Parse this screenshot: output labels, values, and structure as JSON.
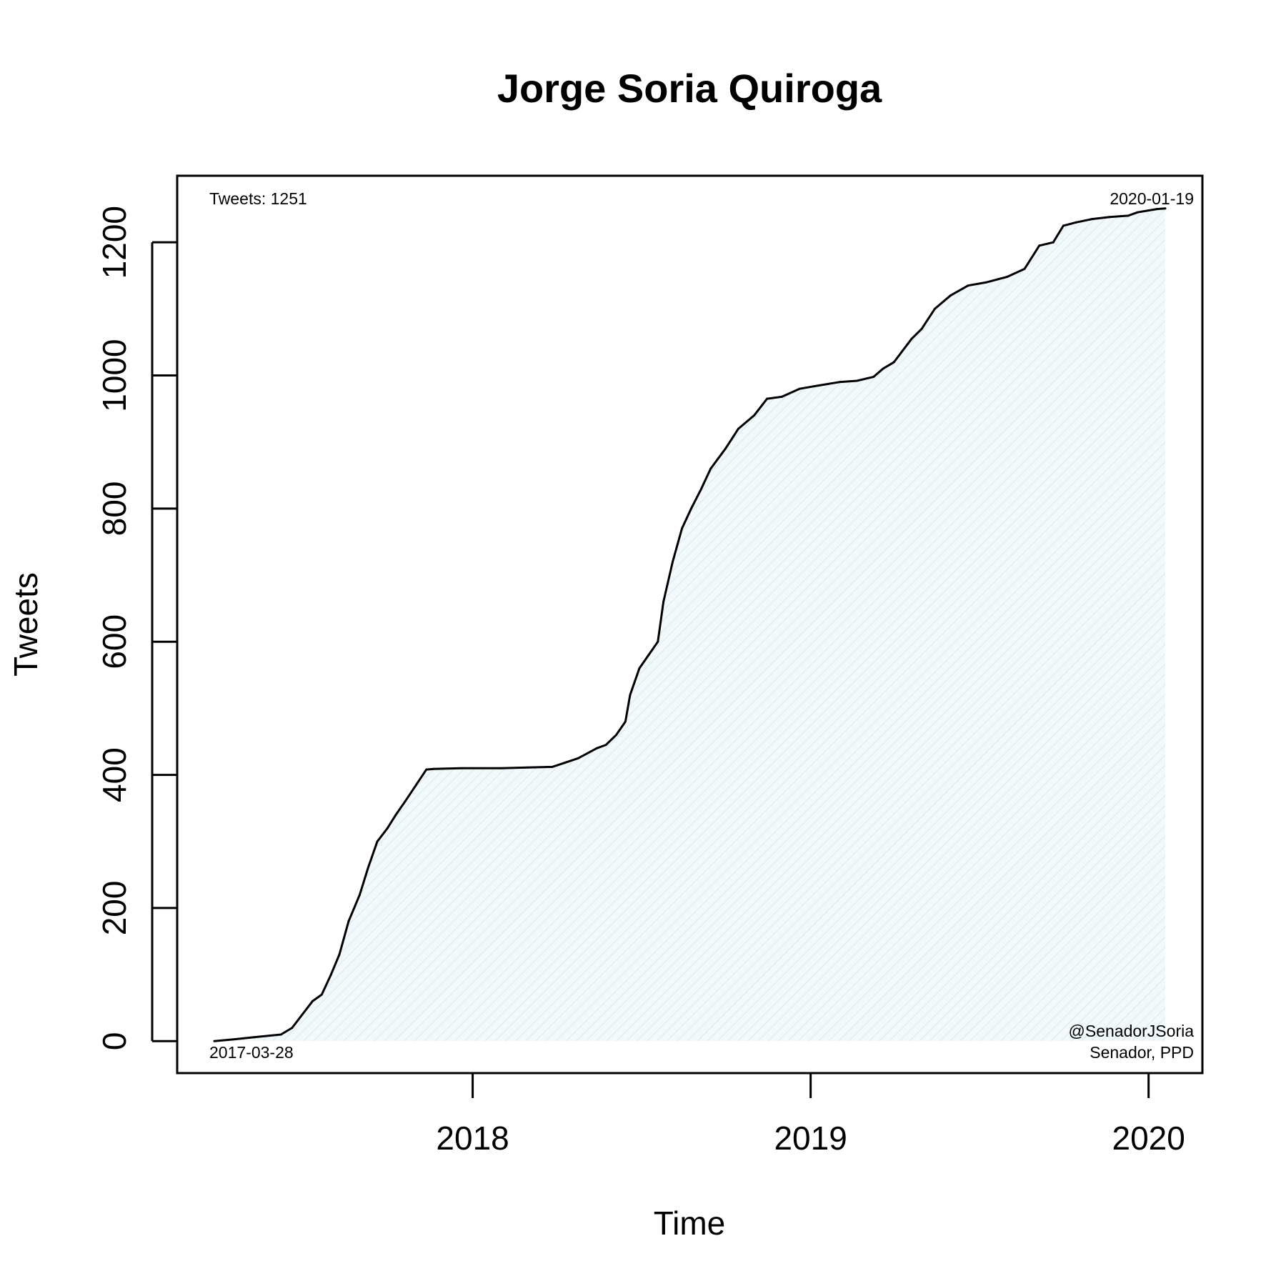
{
  "chart_data": {
    "type": "area",
    "title": "Jorge Soria Quiroga",
    "xlabel": "Time",
    "ylabel": "Tweets",
    "x_ticks": [
      "2018",
      "2019",
      "2020"
    ],
    "y_ticks": [
      0,
      200,
      400,
      600,
      800,
      1000,
      1200
    ],
    "xlim": [
      "2017-03-28",
      "2020-01-19"
    ],
    "ylim": [
      -48,
      1300
    ],
    "grid": false,
    "fill_color": "#e9f3f6",
    "line_color": "#000000",
    "annotations": {
      "top_left": "Tweets: 1251",
      "top_right": "2020-01-19",
      "bottom_left": "2017-03-28",
      "bottom_right_line1": "@SenadorJSoria",
      "bottom_right_line2": "Senador, PPD"
    },
    "series": [
      {
        "x": [
          "2017-03-28",
          "2017-04-20",
          "2017-05-10",
          "2017-06-08",
          "2017-06-20",
          "2017-07-01",
          "2017-07-12",
          "2017-07-22",
          "2017-08-01",
          "2017-08-10",
          "2017-08-20",
          "2017-09-01",
          "2017-09-10",
          "2017-09-20",
          "2017-10-01",
          "2017-10-10",
          "2017-10-20",
          "2017-11-01",
          "2017-11-12",
          "2017-11-20",
          "2017-12-20",
          "2018-02-01",
          "2018-03-01",
          "2018-03-28",
          "2018-04-10",
          "2018-04-25",
          "2018-05-15",
          "2018-05-25",
          "2018-06-05",
          "2018-06-15",
          "2018-06-20",
          "2018-06-30",
          "2018-07-10",
          "2018-07-20",
          "2018-07-26",
          "2018-08-05",
          "2018-08-15",
          "2018-08-25",
          "2018-09-05",
          "2018-09-15",
          "2018-10-01",
          "2018-10-15",
          "2018-11-01",
          "2018-11-15",
          "2018-12-01",
          "2018-12-20",
          "2019-01-10",
          "2019-02-01",
          "2019-02-20",
          "2019-03-10",
          "2019-03-20",
          "2019-04-01",
          "2019-04-20",
          "2019-05-01",
          "2019-05-15",
          "2019-06-01",
          "2019-06-20",
          "2019-07-10",
          "2019-08-01",
          "2019-08-20",
          "2019-09-05",
          "2019-09-20",
          "2019-10-01",
          "2019-10-15",
          "2019-11-01",
          "2019-11-20",
          "2019-12-10",
          "2019-12-20",
          "2020-01-10",
          "2020-01-19"
        ],
        "values": [
          0,
          3,
          6,
          10,
          20,
          40,
          60,
          70,
          100,
          130,
          180,
          220,
          260,
          300,
          320,
          340,
          360,
          385,
          408,
          409,
          410,
          410,
          411,
          412,
          418,
          425,
          440,
          445,
          460,
          480,
          520,
          560,
          580,
          600,
          660,
          720,
          770,
          800,
          830,
          860,
          890,
          920,
          940,
          965,
          968,
          980,
          985,
          990,
          992,
          998,
          1010,
          1020,
          1055,
          1070,
          1100,
          1120,
          1135,
          1140,
          1148,
          1160,
          1195,
          1200,
          1225,
          1230,
          1235,
          1238,
          1240,
          1245,
          1250,
          1251
        ]
      }
    ]
  }
}
